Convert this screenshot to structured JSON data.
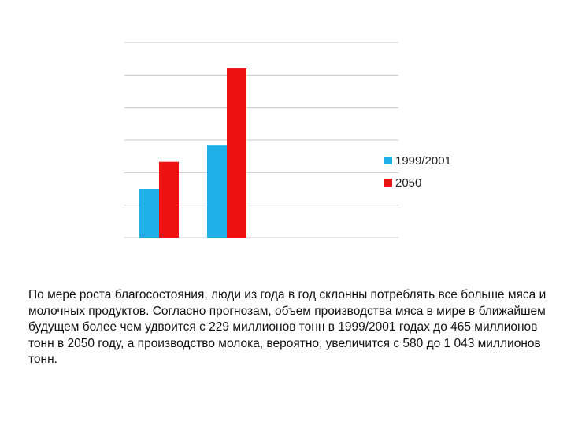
{
  "chart_data": {
    "type": "bar",
    "title": "",
    "xlabel": "",
    "ylabel": "",
    "categories": [
      "",
      ""
    ],
    "ylim": [
      0,
      600
    ],
    "grid": true,
    "legend_position": "right",
    "series": [
      {
        "name": "1999/2001",
        "values": [
          150,
          285
        ],
        "color": "#1fb0e8"
      },
      {
        "name": "2050",
        "values": [
          233,
          520
        ],
        "color": "#ee1111"
      }
    ]
  },
  "caption": "По мере роста благосостояния, люди из года в год склонны потреблять все больше мяса и молочных продуктов. Согласно прогнозам, объем производства мяса в мире в ближайшем будущем более чем удвоится с 229 миллионов тонн в 1999/2001 годах до 465 миллионов тонн в 2050 году, а производство молока, вероятно, увеличится с 580 до 1 043 миллионов тонн."
}
